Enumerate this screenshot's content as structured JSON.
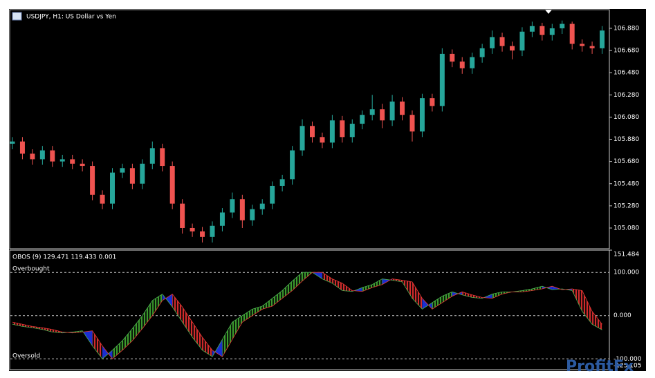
{
  "chart_data": [
    {
      "type": "candlestick",
      "title": "USDJPY, H1:  US Dollar vs Yen",
      "up_color": "#26a69a",
      "down_color": "#ef5350",
      "open": [
        105.84,
        105.86,
        105.75,
        105.7,
        105.78,
        105.68,
        105.7,
        105.66,
        105.64,
        105.38,
        105.3,
        105.58,
        105.62,
        105.48,
        105.66,
        105.8,
        105.64,
        105.3,
        105.08,
        105.05,
        105.0,
        105.1,
        105.22,
        105.34,
        105.15,
        105.25,
        105.3,
        105.46,
        105.52,
        105.78,
        106.0,
        105.9,
        105.85,
        106.05,
        105.9,
        106.02,
        106.1,
        106.15,
        106.05,
        106.22,
        106.1,
        105.95,
        106.25,
        106.18,
        106.65,
        106.58,
        106.52,
        106.62,
        106.7,
        106.8,
        106.72,
        106.68,
        106.85,
        106.9,
        106.82,
        106.88,
        106.92,
        106.74,
        106.72,
        106.7
      ],
      "high": [
        105.9,
        105.9,
        105.79,
        105.82,
        105.82,
        105.74,
        105.74,
        105.7,
        105.68,
        105.42,
        105.62,
        105.66,
        105.66,
        105.7,
        105.86,
        105.84,
        105.68,
        105.34,
        105.12,
        105.09,
        105.14,
        105.26,
        105.4,
        105.38,
        105.29,
        105.34,
        105.5,
        105.56,
        105.82,
        106.06,
        106.04,
        105.94,
        106.1,
        106.09,
        106.06,
        106.14,
        106.28,
        106.2,
        106.28,
        106.26,
        106.14,
        106.29,
        106.29,
        106.7,
        106.69,
        106.62,
        106.66,
        106.74,
        106.86,
        106.84,
        106.76,
        106.89,
        106.94,
        106.93,
        106.92,
        106.95,
        106.94,
        106.78,
        106.76,
        106.9
      ],
      "low": [
        105.79,
        105.7,
        105.65,
        105.65,
        105.63,
        105.63,
        105.61,
        105.59,
        105.33,
        105.25,
        105.25,
        105.53,
        105.43,
        105.43,
        105.61,
        105.59,
        105.25,
        105.03,
        105.0,
        104.95,
        104.95,
        105.05,
        105.17,
        105.08,
        105.1,
        105.2,
        105.25,
        105.41,
        105.47,
        105.73,
        105.85,
        105.8,
        105.8,
        105.85,
        105.85,
        105.97,
        106.05,
        105.98,
        106.0,
        106.05,
        105.86,
        105.9,
        106.13,
        106.13,
        106.53,
        106.47,
        106.47,
        106.57,
        106.65,
        106.67,
        106.6,
        106.63,
        106.8,
        106.77,
        106.77,
        106.83,
        106.69,
        106.67,
        106.65,
        106.65
      ],
      "close": [
        105.86,
        105.75,
        105.7,
        105.78,
        105.68,
        105.7,
        105.66,
        105.64,
        105.38,
        105.3,
        105.58,
        105.62,
        105.48,
        105.66,
        105.8,
        105.64,
        105.3,
        105.08,
        105.05,
        105.0,
        105.1,
        105.22,
        105.34,
        105.15,
        105.25,
        105.3,
        105.46,
        105.52,
        105.78,
        106.0,
        105.9,
        105.85,
        106.05,
        105.9,
        106.02,
        106.1,
        106.15,
        106.05,
        106.22,
        106.1,
        105.95,
        106.25,
        106.18,
        106.65,
        106.58,
        106.52,
        106.62,
        106.7,
        106.8,
        106.72,
        106.68,
        106.85,
        106.9,
        106.82,
        106.88,
        106.92,
        106.74,
        106.72,
        106.7,
        106.86
      ],
      "ylim": [
        104.893,
        107.048
      ],
      "yticks": [
        {
          "value": 105.08,
          "label": "105.080"
        },
        {
          "value": 105.28,
          "label": "105.280"
        },
        {
          "value": 105.48,
          "label": "105.480"
        },
        {
          "value": 105.68,
          "label": "105.680"
        },
        {
          "value": 105.88,
          "label": "105.880"
        },
        {
          "value": 106.08,
          "label": "106.080"
        },
        {
          "value": 106.28,
          "label": "106.280"
        },
        {
          "value": 106.48,
          "label": "106.480"
        },
        {
          "value": 106.68,
          "label": "106.680"
        },
        {
          "value": 106.88,
          "label": "106.880"
        }
      ]
    },
    {
      "type": "line",
      "title": "OBOS (9) 129.471 119.433 0.001",
      "annotations": [
        "Overbought",
        "Oversold"
      ],
      "up_color": "#3c9a2c",
      "down_color": "#d22b2b",
      "cross_color": "#1a2fd0",
      "series": [
        {
          "color": "#4caf50",
          "values": [
            -20,
            -25,
            -28,
            -32,
            -38,
            -40,
            -38,
            -35,
            -70,
            -100,
            -80,
            -58,
            -30,
            0,
            35,
            50,
            20,
            -15,
            -50,
            -80,
            -95,
            -55,
            -15,
            0,
            15,
            22,
            40,
            58,
            80,
            100,
            100,
            85,
            75,
            58,
            56,
            65,
            72,
            85,
            82,
            78,
            40,
            15,
            30,
            45,
            55,
            48,
            42,
            40,
            50,
            55,
            55,
            58,
            62,
            68,
            60,
            62,
            58,
            10,
            -20,
            -33
          ]
        },
        {
          "color": "#e53935",
          "values": [
            -15,
            -20,
            -25,
            -28,
            -32,
            -38,
            -40,
            -38,
            -35,
            -70,
            -100,
            -80,
            -58,
            -30,
            0,
            35,
            50,
            20,
            -15,
            -50,
            -80,
            -95,
            -55,
            -15,
            0,
            15,
            22,
            40,
            58,
            80,
            100,
            100,
            85,
            75,
            58,
            56,
            65,
            72,
            85,
            82,
            78,
            40,
            15,
            30,
            45,
            55,
            48,
            42,
            40,
            50,
            55,
            55,
            58,
            62,
            68,
            60,
            62,
            58,
            10,
            -20
          ]
        }
      ],
      "ylim": [
        -125.105,
        151.484
      ],
      "yticks": [
        {
          "value": -125.105,
          "label": "-125.105"
        },
        {
          "value": -100,
          "label": "-100.000"
        },
        {
          "value": 0,
          "label": "0.000"
        },
        {
          "value": 100,
          "label": "100.000"
        },
        {
          "value": 151.484,
          "label": "151.484"
        }
      ]
    }
  ],
  "watermark": "ProfitFx"
}
